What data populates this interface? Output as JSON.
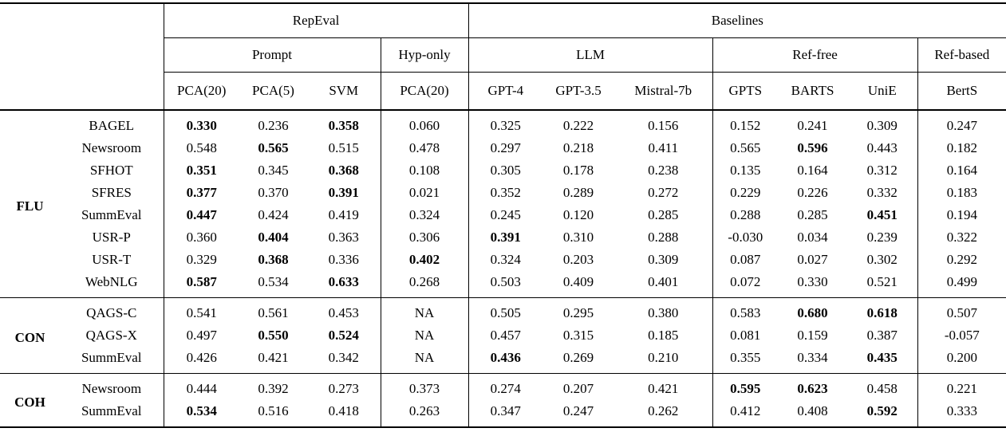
{
  "colors": {
    "text": "#000000",
    "background": "#ffffff",
    "rule": "#000000"
  },
  "table": {
    "header": {
      "top_groups": [
        {
          "label": "RepEval",
          "colspan": 4
        },
        {
          "label": "Baselines",
          "colspan": 7
        }
      ],
      "sub_groups": [
        {
          "label": "Prompt",
          "colspan": 3
        },
        {
          "label": "Hyp-only",
          "colspan": 1
        },
        {
          "label": "LLM",
          "colspan": 3
        },
        {
          "label": "Ref-free",
          "colspan": 3
        },
        {
          "label": "Ref-based",
          "colspan": 1
        }
      ],
      "columns": [
        "PCA(20)",
        "PCA(5)",
        "SVM",
        "PCA(20)",
        "GPT-4",
        "GPT-3.5",
        "Mistral-7b",
        "GPTS",
        "BARTS",
        "UniE",
        "BertS"
      ]
    },
    "groups": [
      {
        "label": "FLU",
        "rows": [
          {
            "dataset": "BAGEL",
            "values": [
              {
                "v": "0.330",
                "b": true
              },
              {
                "v": "0.236"
              },
              {
                "v": "0.358",
                "b": true
              },
              {
                "v": "0.060"
              },
              {
                "v": "0.325"
              },
              {
                "v": "0.222"
              },
              {
                "v": "0.156"
              },
              {
                "v": "0.152"
              },
              {
                "v": "0.241"
              },
              {
                "v": "0.309"
              },
              {
                "v": "0.247"
              }
            ]
          },
          {
            "dataset": "Newsroom",
            "values": [
              {
                "v": "0.548"
              },
              {
                "v": "0.565",
                "b": true
              },
              {
                "v": "0.515"
              },
              {
                "v": "0.478"
              },
              {
                "v": "0.297"
              },
              {
                "v": "0.218"
              },
              {
                "v": "0.411"
              },
              {
                "v": "0.565"
              },
              {
                "v": "0.596",
                "b": true
              },
              {
                "v": "0.443"
              },
              {
                "v": "0.182"
              }
            ]
          },
          {
            "dataset": "SFHOT",
            "values": [
              {
                "v": "0.351",
                "b": true
              },
              {
                "v": "0.345"
              },
              {
                "v": "0.368",
                "b": true
              },
              {
                "v": "0.108"
              },
              {
                "v": "0.305"
              },
              {
                "v": "0.178"
              },
              {
                "v": "0.238"
              },
              {
                "v": "0.135"
              },
              {
                "v": "0.164"
              },
              {
                "v": "0.312"
              },
              {
                "v": "0.164"
              }
            ]
          },
          {
            "dataset": "SFRES",
            "values": [
              {
                "v": "0.377",
                "b": true
              },
              {
                "v": "0.370"
              },
              {
                "v": "0.391",
                "b": true
              },
              {
                "v": "0.021"
              },
              {
                "v": "0.352"
              },
              {
                "v": "0.289"
              },
              {
                "v": "0.272"
              },
              {
                "v": "0.229"
              },
              {
                "v": "0.226"
              },
              {
                "v": "0.332"
              },
              {
                "v": "0.183"
              }
            ]
          },
          {
            "dataset": "SummEval",
            "values": [
              {
                "v": "0.447",
                "b": true
              },
              {
                "v": "0.424"
              },
              {
                "v": "0.419"
              },
              {
                "v": "0.324"
              },
              {
                "v": "0.245"
              },
              {
                "v": "0.120"
              },
              {
                "v": "0.285"
              },
              {
                "v": "0.288"
              },
              {
                "v": "0.285"
              },
              {
                "v": "0.451",
                "b": true
              },
              {
                "v": "0.194"
              }
            ]
          },
          {
            "dataset": "USR-P",
            "values": [
              {
                "v": "0.360"
              },
              {
                "v": "0.404",
                "b": true
              },
              {
                "v": "0.363"
              },
              {
                "v": "0.306"
              },
              {
                "v": "0.391",
                "b": true
              },
              {
                "v": "0.310"
              },
              {
                "v": "0.288"
              },
              {
                "v": "-0.030"
              },
              {
                "v": "0.034"
              },
              {
                "v": "0.239"
              },
              {
                "v": "0.322"
              }
            ]
          },
          {
            "dataset": "USR-T",
            "values": [
              {
                "v": "0.329"
              },
              {
                "v": "0.368",
                "b": true
              },
              {
                "v": "0.336"
              },
              {
                "v": "0.402",
                "b": true
              },
              {
                "v": "0.324"
              },
              {
                "v": "0.203"
              },
              {
                "v": "0.309"
              },
              {
                "v": "0.087"
              },
              {
                "v": "0.027"
              },
              {
                "v": "0.302"
              },
              {
                "v": "0.292"
              }
            ]
          },
          {
            "dataset": "WebNLG",
            "values": [
              {
                "v": "0.587",
                "b": true
              },
              {
                "v": "0.534"
              },
              {
                "v": "0.633",
                "b": true
              },
              {
                "v": "0.268"
              },
              {
                "v": "0.503"
              },
              {
                "v": "0.409"
              },
              {
                "v": "0.401"
              },
              {
                "v": "0.072"
              },
              {
                "v": "0.330"
              },
              {
                "v": "0.521"
              },
              {
                "v": "0.499"
              }
            ]
          }
        ]
      },
      {
        "label": "CON",
        "rows": [
          {
            "dataset": "QAGS-C",
            "values": [
              {
                "v": "0.541"
              },
              {
                "v": "0.561"
              },
              {
                "v": "0.453"
              },
              {
                "v": "NA"
              },
              {
                "v": "0.505"
              },
              {
                "v": "0.295"
              },
              {
                "v": "0.380"
              },
              {
                "v": "0.583"
              },
              {
                "v": "0.680",
                "b": true
              },
              {
                "v": "0.618",
                "b": true
              },
              {
                "v": "0.507"
              }
            ]
          },
          {
            "dataset": "QAGS-X",
            "values": [
              {
                "v": "0.497"
              },
              {
                "v": "0.550",
                "b": true
              },
              {
                "v": "0.524",
                "b": true
              },
              {
                "v": "NA"
              },
              {
                "v": "0.457"
              },
              {
                "v": "0.315"
              },
              {
                "v": "0.185"
              },
              {
                "v": "0.081"
              },
              {
                "v": "0.159"
              },
              {
                "v": "0.387"
              },
              {
                "v": "-0.057"
              }
            ]
          },
          {
            "dataset": "SummEval",
            "values": [
              {
                "v": "0.426"
              },
              {
                "v": "0.421"
              },
              {
                "v": "0.342"
              },
              {
                "v": "NA"
              },
              {
                "v": "0.436",
                "b": true
              },
              {
                "v": "0.269"
              },
              {
                "v": "0.210"
              },
              {
                "v": "0.355"
              },
              {
                "v": "0.334"
              },
              {
                "v": "0.435",
                "b": true
              },
              {
                "v": "0.200"
              }
            ]
          }
        ]
      },
      {
        "label": "COH",
        "rows": [
          {
            "dataset": "Newsroom",
            "values": [
              {
                "v": "0.444"
              },
              {
                "v": "0.392"
              },
              {
                "v": "0.273"
              },
              {
                "v": "0.373"
              },
              {
                "v": "0.274"
              },
              {
                "v": "0.207"
              },
              {
                "v": "0.421"
              },
              {
                "v": "0.595",
                "b": true
              },
              {
                "v": "0.623",
                "b": true
              },
              {
                "v": "0.458"
              },
              {
                "v": "0.221"
              }
            ]
          },
          {
            "dataset": "SummEval",
            "values": [
              {
                "v": "0.534",
                "b": true
              },
              {
                "v": "0.516"
              },
              {
                "v": "0.418"
              },
              {
                "v": "0.263"
              },
              {
                "v": "0.347"
              },
              {
                "v": "0.247"
              },
              {
                "v": "0.262"
              },
              {
                "v": "0.412"
              },
              {
                "v": "0.408"
              },
              {
                "v": "0.592",
                "b": true
              },
              {
                "v": "0.333"
              }
            ]
          }
        ]
      }
    ]
  }
}
